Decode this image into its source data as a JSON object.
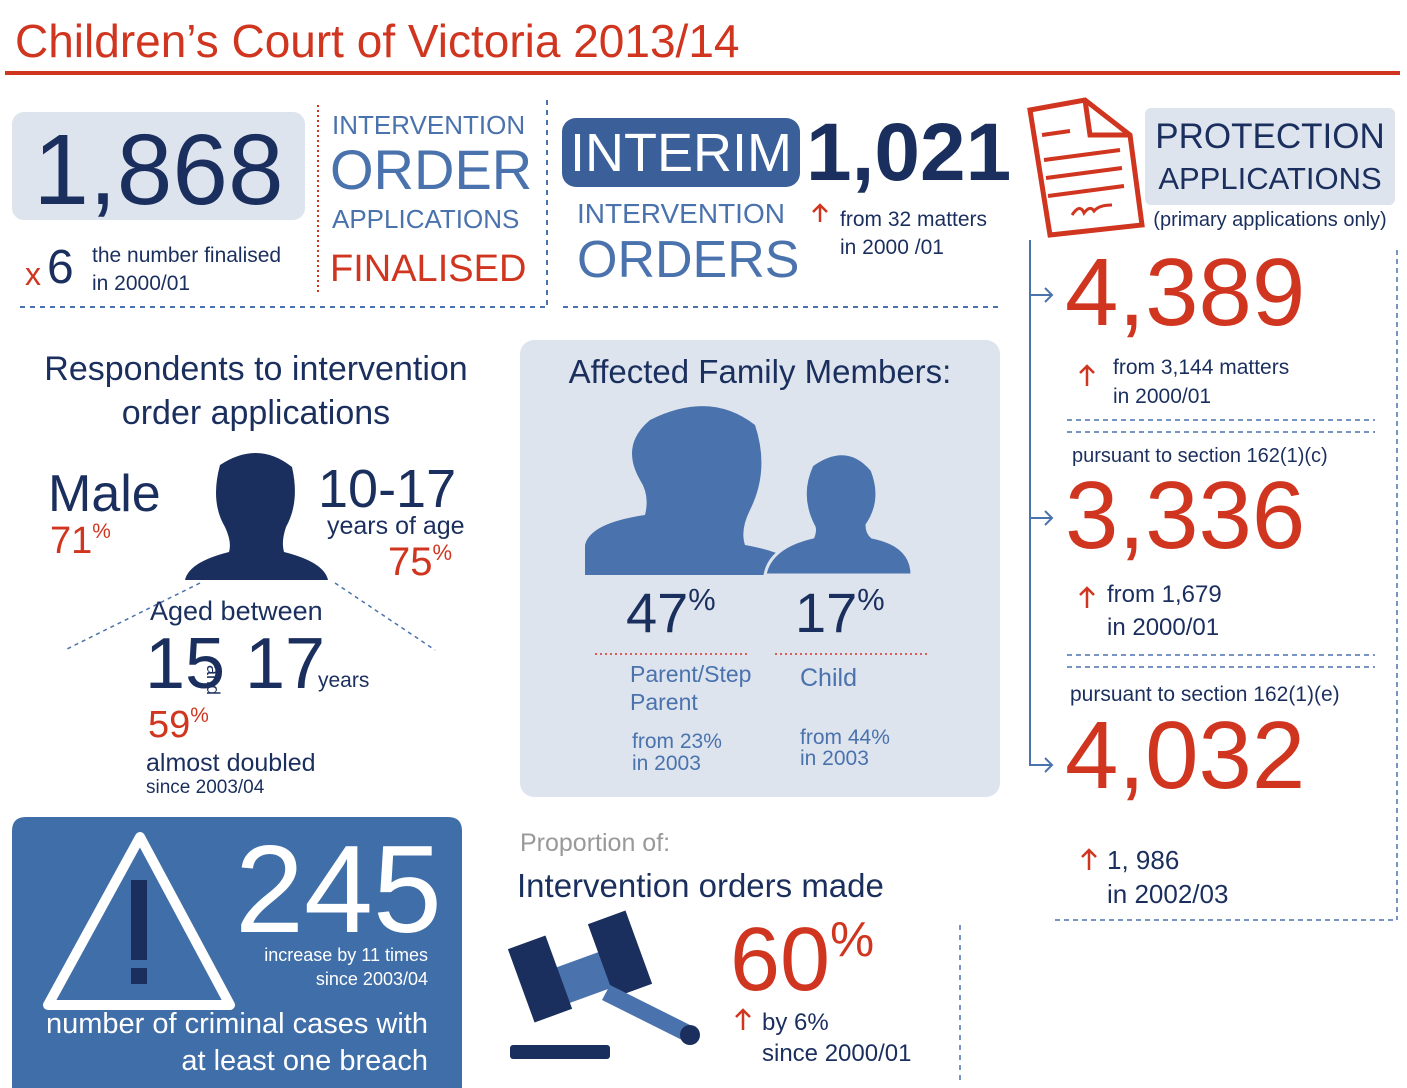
{
  "title": "Children’s Court of Victoria 2013/14",
  "finalised": {
    "number": "1,868",
    "multiplier_x": "x",
    "multiplier": "6",
    "note": [
      "the number finalised",
      "in 2000/01"
    ],
    "label": [
      "INTERVENTION",
      "ORDER",
      "APPLICATIONS",
      "FINALISED"
    ]
  },
  "interim": {
    "badge": "INTERIM",
    "number": "1,021",
    "label": [
      "INTERVENTION",
      "ORDERS"
    ],
    "note": [
      "from 32 matters",
      "in 2000 /01"
    ]
  },
  "protection": {
    "title": [
      "PROTECTION",
      "APPLICATIONS"
    ],
    "subtitle": "(primary applications only)",
    "items": [
      {
        "number": "4,389",
        "note": [
          "from 3,144 matters",
          "in 2000/01"
        ]
      },
      {
        "heading": "pursuant to section 162(1)(c)",
        "number": "3,336",
        "note": [
          "from 1,679",
          "in 2000/01"
        ]
      },
      {
        "heading": "pursuant to section 162(1)(e)",
        "number": "4,032",
        "note": [
          "1, 986",
          "in 2002/03"
        ]
      }
    ]
  },
  "respondents": {
    "title": [
      "Respondents to intervention",
      "order applications"
    ],
    "male": {
      "label": "Male",
      "value": "71",
      "unit": "%"
    },
    "age": {
      "range": "10-17",
      "label": "years of age",
      "value": "75",
      "unit": "%"
    },
    "aged": {
      "heading": "Aged between",
      "from": "15",
      "and": "and",
      "to": "17",
      "unit": "years",
      "value": "59",
      "pct": "%",
      "note": "almost doubled",
      "since": "since 2003/04"
    }
  },
  "affected": {
    "title": "Affected Family Members:",
    "groups": [
      {
        "value": "47",
        "unit": "%",
        "label": [
          "Parent/Step",
          "Parent"
        ],
        "note": [
          "from 23%",
          "in 2003"
        ]
      },
      {
        "value": "17",
        "unit": "%",
        "label": [
          "Child"
        ],
        "note": [
          "from 44%",
          "in 2003"
        ]
      }
    ]
  },
  "breach": {
    "number": "245",
    "note": [
      "increase by 11 times",
      "since 2003/04"
    ],
    "label": [
      "number of criminal cases with",
      "at least one breach"
    ]
  },
  "orders_made": {
    "kicker": "Proportion of:",
    "title": "Intervention orders made",
    "value": "60",
    "unit": "%",
    "note": [
      "by 6%",
      "since 2000/01"
    ]
  }
}
